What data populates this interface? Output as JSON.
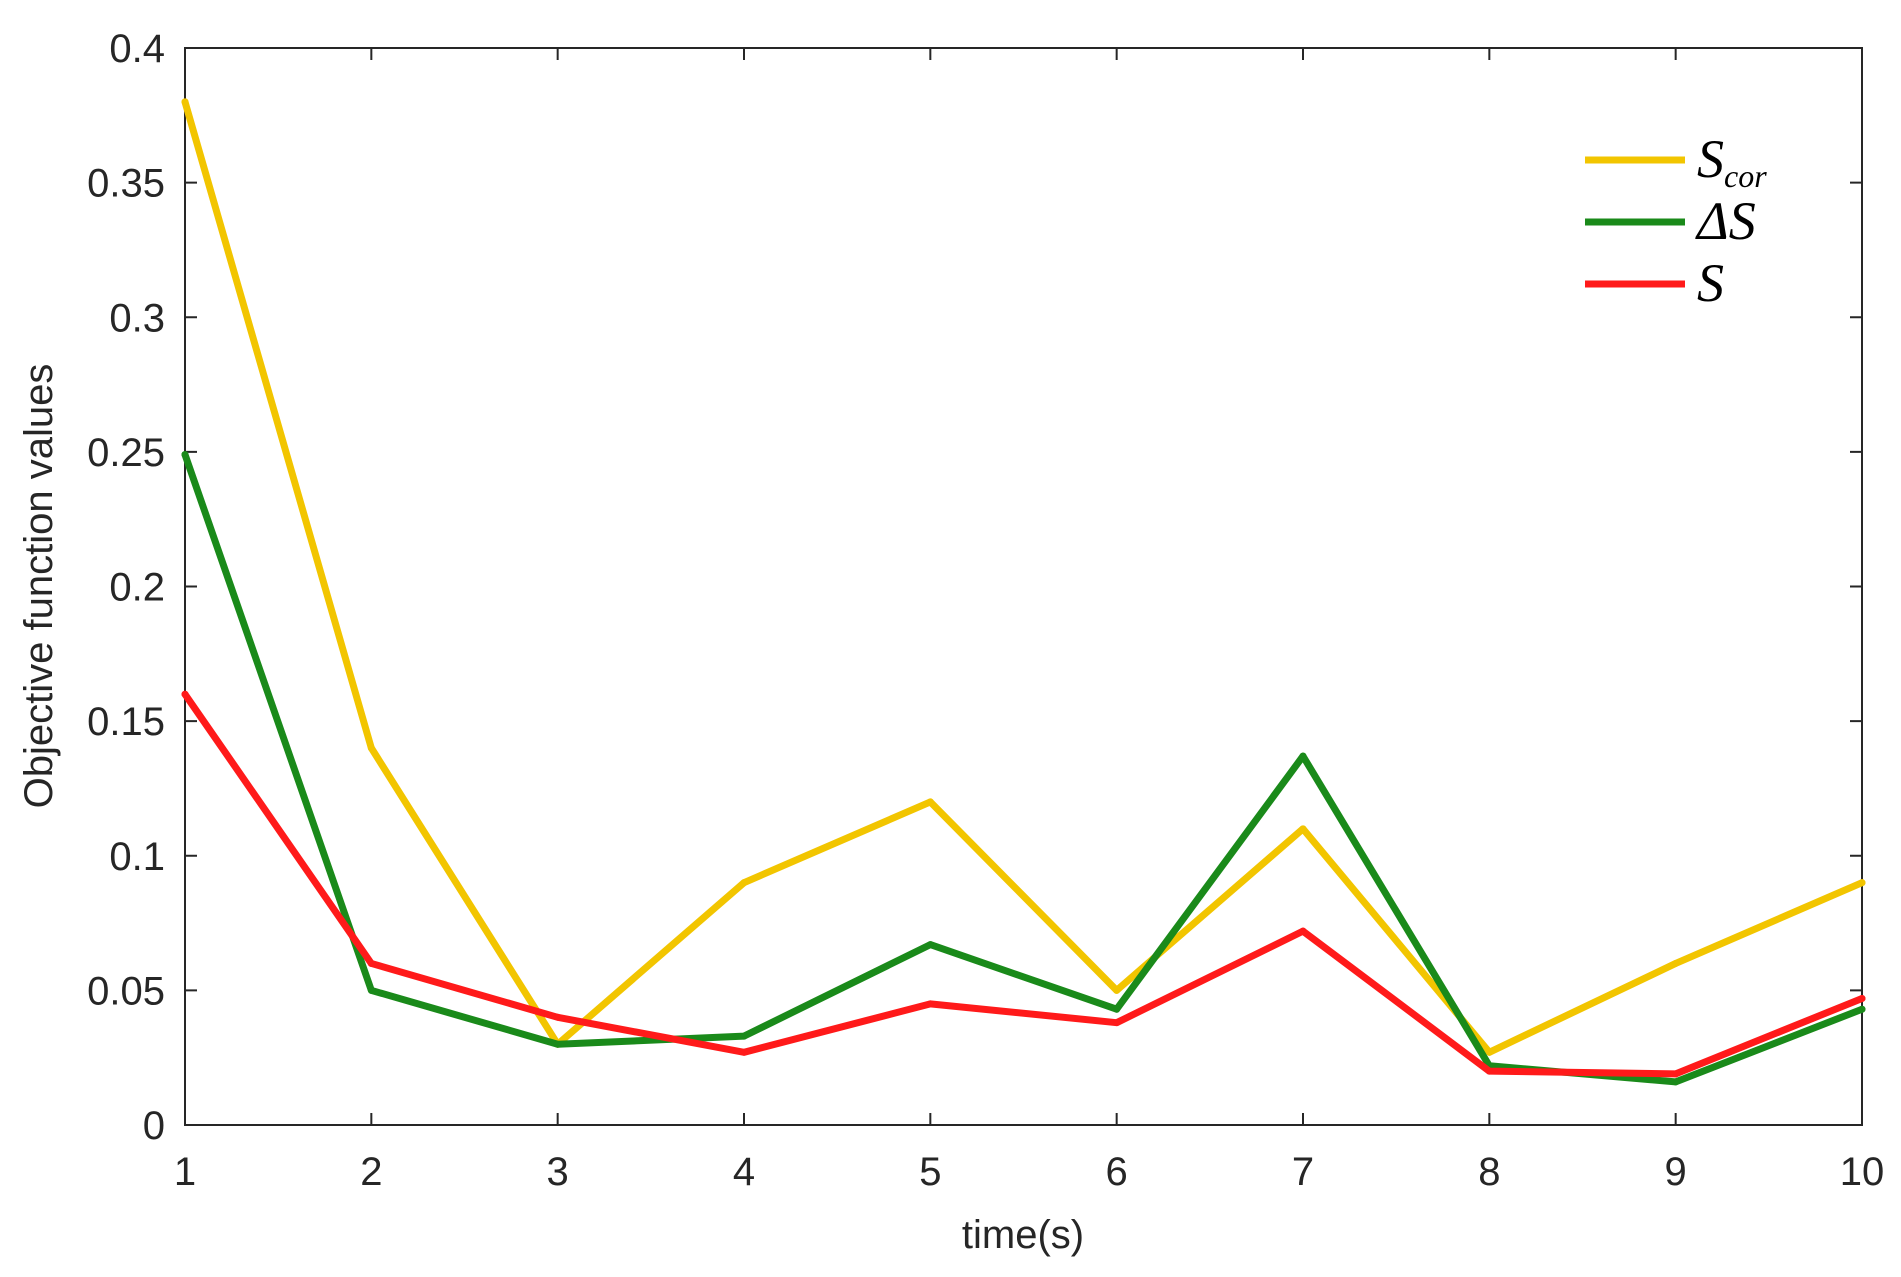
{
  "chart_data": {
    "type": "line",
    "title": "",
    "xlabel": "time(s)",
    "ylabel": "Objective function values",
    "x": [
      1,
      2,
      3,
      4,
      5,
      6,
      7,
      8,
      9,
      10
    ],
    "xlim": [
      1,
      10
    ],
    "ylim": [
      0,
      0.4
    ],
    "xticks": [
      "1",
      "2",
      "3",
      "4",
      "5",
      "6",
      "7",
      "8",
      "9",
      "10"
    ],
    "yticks": [
      "0",
      "0.05",
      "0.1",
      "0.15",
      "0.2",
      "0.25",
      "0.3",
      "0.35",
      "0.4"
    ],
    "yticks_values": [
      0,
      0.05,
      0.1,
      0.15,
      0.2,
      0.25,
      0.3,
      0.35,
      0.4
    ],
    "grid": false,
    "box": true,
    "legend_position": "top-right",
    "series": [
      {
        "name": "S_cor",
        "legend": {
          "main": "S",
          "sub": "cor"
        },
        "color": "#F2C500",
        "values": [
          0.38,
          0.14,
          0.03,
          0.09,
          0.12,
          0.05,
          0.11,
          0.027,
          0.06,
          0.09
        ]
      },
      {
        "name": "ΔS",
        "legend": {
          "main": "ΔS",
          "sub": ""
        },
        "color": "#1A8A1A",
        "values": [
          0.249,
          0.05,
          0.03,
          0.033,
          0.067,
          0.043,
          0.137,
          0.022,
          0.016,
          0.043
        ]
      },
      {
        "name": "S",
        "legend": {
          "main": "S",
          "sub": ""
        },
        "color": "#FF1A1A",
        "values": [
          0.16,
          0.06,
          0.04,
          0.027,
          0.045,
          0.038,
          0.072,
          0.02,
          0.019,
          0.047
        ]
      }
    ]
  }
}
